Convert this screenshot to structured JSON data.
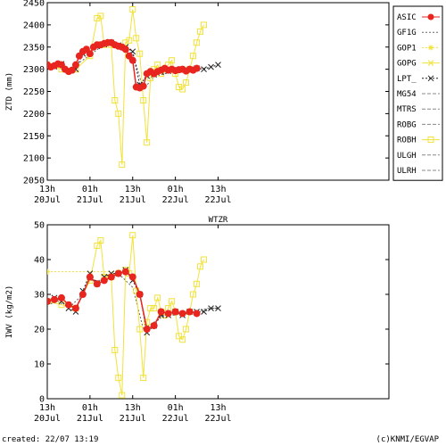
{
  "chart_data": [
    {
      "type": "line",
      "title": "",
      "ylabel": "ZTD (mm)",
      "ylim": [
        2050,
        2450
      ],
      "yticks": [
        2050,
        2100,
        2150,
        2200,
        2250,
        2300,
        2350,
        2400,
        2450
      ],
      "xlim_hours": [
        0,
        96
      ],
      "xticks": [
        {
          "h": 0,
          "top": "13h",
          "bottom": "20Jul"
        },
        {
          "h": 12,
          "top": "01h",
          "bottom": "21Jul"
        },
        {
          "h": 24,
          "top": "13h",
          "bottom": "21Jul"
        },
        {
          "h": 36,
          "top": "01h",
          "bottom": "22Jul"
        },
        {
          "h": 48,
          "top": "13h",
          "bottom": "22Jul"
        }
      ],
      "legend_position": "right",
      "legend": [
        {
          "name": "ASIC",
          "color": "#e8251f",
          "marker": "circle",
          "style": "solid"
        },
        {
          "name": "GF1G",
          "color": "#666666",
          "marker": "none",
          "style": "dotted"
        },
        {
          "name": "GOP1",
          "color": "#f2e23a",
          "marker": "star",
          "style": "dotted"
        },
        {
          "name": "GOPG",
          "color": "#f2e23a",
          "marker": "x",
          "style": "solid"
        },
        {
          "name": "LPT_",
          "color": "#222222",
          "marker": "x",
          "style": "dotted"
        },
        {
          "name": "MG54",
          "color": "#888888",
          "marker": "none",
          "style": "dashed"
        },
        {
          "name": "MTRS",
          "color": "#888888",
          "marker": "none",
          "style": "dashed"
        },
        {
          "name": "ROBG",
          "color": "#888888",
          "marker": "none",
          "style": "dashed"
        },
        {
          "name": "ROBH",
          "color": "#f2e23a",
          "marker": "square",
          "style": "solid"
        },
        {
          "name": "ULGH",
          "color": "#888888",
          "marker": "none",
          "style": "dashed"
        },
        {
          "name": "ULRH",
          "color": "#888888",
          "marker": "none",
          "style": "dashed"
        }
      ],
      "series": [
        {
          "name": "ASIC",
          "x": [
            0,
            1,
            2,
            3,
            4,
            5,
            6,
            7,
            8,
            9,
            10,
            11,
            12,
            13,
            14,
            15,
            16,
            17,
            18,
            19,
            20,
            21,
            22,
            23,
            24,
            25,
            26,
            27,
            28,
            29,
            30,
            31,
            32,
            33,
            34,
            35,
            36,
            37,
            38,
            39,
            40,
            41,
            42
          ],
          "y": [
            2310,
            2305,
            2308,
            2312,
            2310,
            2300,
            2295,
            2298,
            2310,
            2330,
            2340,
            2345,
            2335,
            2350,
            2355,
            2355,
            2358,
            2360,
            2360,
            2355,
            2352,
            2350,
            2345,
            2330,
            2320,
            2260,
            2258,
            2262,
            2290,
            2295,
            2290,
            2295,
            2298,
            2302,
            2298,
            2300,
            2297,
            2299,
            2300,
            2296,
            2300,
            2298,
            2302
          ]
        },
        {
          "name": "LPT_",
          "x": [
            0,
            2,
            4,
            6,
            8,
            10,
            12,
            14,
            16,
            18,
            20,
            22,
            24,
            26,
            28,
            30,
            32,
            34,
            36,
            38,
            40,
            42,
            44,
            46,
            48
          ],
          "y": [
            2308,
            2306,
            2312,
            2296,
            2300,
            2335,
            2338,
            2352,
            2356,
            2360,
            2354,
            2350,
            2340,
            2265,
            2285,
            2288,
            2294,
            2296,
            2300,
            2298,
            2298,
            2302,
            2300,
            2305,
            2310
          ]
        },
        {
          "name": "GF1G",
          "x": [
            0,
            3,
            6,
            9,
            12,
            15,
            18,
            21,
            24,
            27,
            30,
            33,
            36,
            39,
            42,
            45,
            48
          ],
          "y": [
            2306,
            2309,
            2292,
            2315,
            2332,
            2350,
            2355,
            2350,
            2335,
            2255,
            2283,
            2290,
            2298,
            2295,
            2300,
            2303,
            2310
          ]
        },
        {
          "name": "ROBH",
          "x": [
            0,
            4,
            8,
            12,
            14,
            15,
            16,
            18,
            19,
            20,
            21,
            22,
            23,
            24,
            25,
            26,
            27,
            28,
            29,
            30,
            31,
            32,
            33,
            34,
            35,
            36,
            37,
            38,
            39,
            40,
            41,
            42,
            43,
            44
          ],
          "y": [
            2310,
            2300,
            2300,
            2330,
            2415,
            2420,
            2355,
            2355,
            2230,
            2200,
            2085,
            2360,
            2365,
            2435,
            2370,
            2335,
            2230,
            2135,
            2280,
            2300,
            2310,
            2290,
            2300,
            2310,
            2320,
            2290,
            2260,
            2255,
            2270,
            2300,
            2330,
            2360,
            2385,
            2400
          ]
        }
      ]
    },
    {
      "type": "line",
      "title": "WTZR",
      "ylabel": "IWV (kg/m2)",
      "ylim": [
        0,
        50
      ],
      "yticks": [
        0,
        10,
        20,
        30,
        40,
        50
      ],
      "xlim_hours": [
        0,
        96
      ],
      "xticks": [
        {
          "h": 0,
          "top": "13h",
          "bottom": "20Jul"
        },
        {
          "h": 12,
          "top": "01h",
          "bottom": "21Jul"
        },
        {
          "h": 24,
          "top": "13h",
          "bottom": "21Jul"
        },
        {
          "h": 36,
          "top": "01h",
          "bottom": "22Jul"
        },
        {
          "h": 48,
          "top": "13h",
          "bottom": "22Jul"
        }
      ],
      "series": [
        {
          "name": "ASIC",
          "x": [
            0,
            2,
            4,
            6,
            8,
            10,
            12,
            14,
            16,
            18,
            20,
            22,
            24,
            26,
            28,
            30,
            32,
            34,
            36,
            38,
            40,
            42
          ],
          "y": [
            28,
            28.5,
            29,
            27,
            26,
            30,
            35,
            33,
            34,
            35,
            36,
            36.5,
            35,
            30,
            20,
            21,
            25,
            24.5,
            25,
            24.5,
            25,
            24.5
          ]
        },
        {
          "name": "LPT_",
          "x": [
            0,
            2,
            4,
            6,
            8,
            10,
            12,
            14,
            16,
            18,
            20,
            22,
            24,
            26,
            28,
            30,
            32,
            34,
            36,
            38,
            40,
            42,
            44,
            46,
            48
          ],
          "y": [
            28,
            29,
            28,
            26,
            25,
            31,
            36,
            33,
            35,
            36,
            36,
            37,
            34,
            30,
            19,
            21,
            24,
            24,
            25,
            24,
            25,
            25,
            25,
            26,
            26
          ]
        },
        {
          "name": "GF1G",
          "x": [
            0,
            3,
            6,
            9,
            12,
            15,
            18,
            21,
            24,
            27,
            30,
            33,
            36,
            39,
            42,
            45,
            48
          ],
          "y": [
            27,
            28,
            26,
            29,
            34,
            34,
            36,
            35,
            32,
            20,
            22,
            24,
            24,
            25,
            25,
            26,
            26
          ]
        },
        {
          "name": "GOP1",
          "x": [
            0,
            20
          ],
          "y": [
            36.5,
            36.5
          ]
        },
        {
          "name": "ROBH",
          "x": [
            0,
            4,
            8,
            12,
            14,
            15,
            16,
            18,
            19,
            20,
            21,
            22,
            23,
            24,
            25,
            26,
            27,
            28,
            29,
            30,
            31,
            32,
            33,
            34,
            35,
            36,
            37,
            38,
            39,
            40,
            41,
            42,
            43,
            44
          ],
          "y": [
            28,
            27,
            26,
            34,
            44,
            45.5,
            35,
            35,
            14,
            6,
            1,
            37,
            36,
            47,
            31,
            20,
            6,
            22,
            26,
            26,
            29,
            25,
            24,
            26,
            28,
            25,
            18,
            17,
            20,
            25,
            30,
            33,
            38,
            40
          ]
        }
      ]
    }
  ],
  "footer": {
    "created": "created: 22/07 13:19",
    "credit": "(c)KNMI/EGVAP"
  }
}
